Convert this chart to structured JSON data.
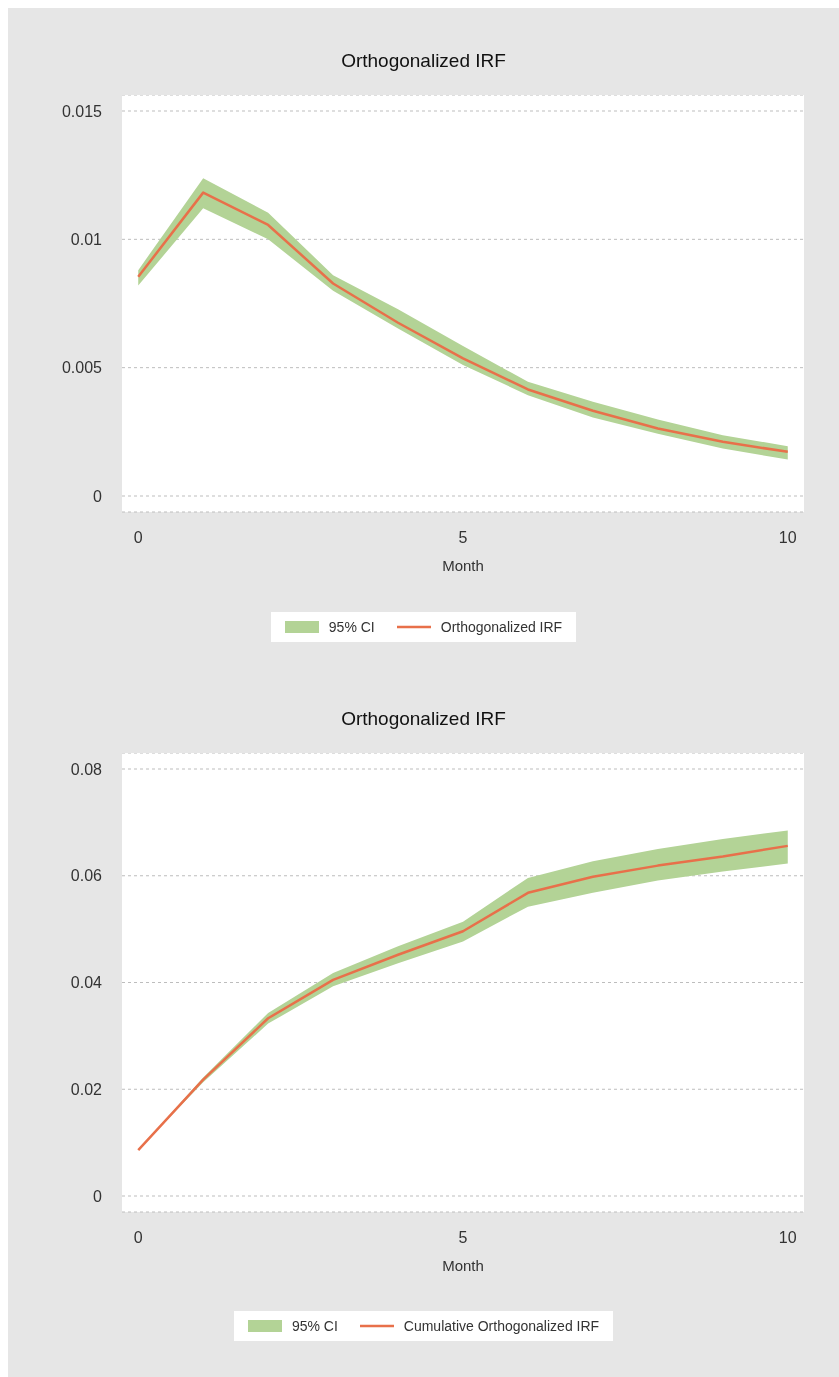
{
  "chart_data": [
    {
      "type": "line",
      "title": "Orthogonalized IRF",
      "xlabel": "Month",
      "annotations": [
        "95% CI"
      ],
      "x": [
        0,
        1,
        2,
        3,
        4,
        5,
        6,
        7,
        8,
        9,
        10
      ],
      "xlim": [
        -0.25,
        10.25
      ],
      "xticks": [
        0,
        5,
        10
      ],
      "ylim": [
        0,
        0.015
      ],
      "yticks": [
        0,
        0.005,
        0.01,
        0.015
      ],
      "grid": "y",
      "legend": "bottom",
      "marker": "none",
      "line_style": "solid",
      "series": [
        {
          "name": "Orthogonalized IRF",
          "color": "#e8704a",
          "values": [
            0.00854,
            0.01182,
            0.01056,
            0.00828,
            0.00675,
            0.00536,
            0.00415,
            0.00332,
            0.00263,
            0.00211,
            0.00172
          ],
          "lower": [
            0.0082,
            0.01121,
            0.01,
            0.008,
            0.00653,
            0.0051,
            0.00393,
            0.00306,
            0.00243,
            0.00185,
            0.00142
          ],
          "upper": [
            0.0088,
            0.01238,
            0.01104,
            0.0086,
            0.00728,
            0.00584,
            0.00445,
            0.00367,
            0.00298,
            0.00237,
            0.00194
          ]
        }
      ]
    },
    {
      "type": "line",
      "title": "Orthogonalized IRF",
      "xlabel": "Month",
      "annotations": [
        "95% CI"
      ],
      "x": [
        0,
        1,
        2,
        3,
        4,
        5,
        6,
        7,
        8,
        9,
        10
      ],
      "xlim": [
        -0.25,
        10.25
      ],
      "xticks": [
        0,
        5,
        10
      ],
      "ylim": [
        0,
        0.08
      ],
      "yticks": [
        0,
        0.02,
        0.04,
        0.06,
        0.08
      ],
      "grid": "y",
      "legend": "bottom",
      "marker": "none",
      "line_style": "solid",
      "series": [
        {
          "name": "Cumulative Orthogonalized IRF",
          "color": "#e8704a",
          "values": [
            0.0086,
            0.0218,
            0.0333,
            0.0405,
            0.0452,
            0.0496,
            0.0568,
            0.0598,
            0.0619,
            0.0636,
            0.0656
          ],
          "lower": [
            0.0086,
            0.0213,
            0.0323,
            0.0393,
            0.0436,
            0.0477,
            0.0542,
            0.0568,
            0.0591,
            0.0608,
            0.0623
          ],
          "upper": [
            0.0086,
            0.0222,
            0.0343,
            0.0418,
            0.0468,
            0.0514,
            0.0596,
            0.0627,
            0.065,
            0.0669,
            0.0685
          ]
        }
      ]
    }
  ]
}
